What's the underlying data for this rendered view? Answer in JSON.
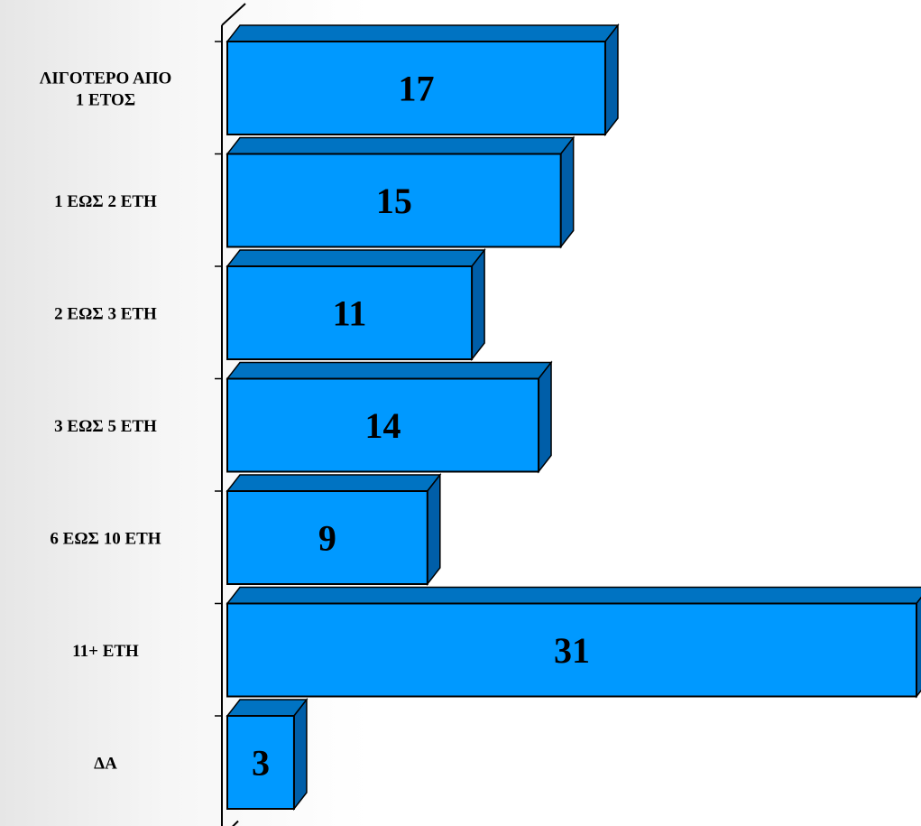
{
  "chart_data": {
    "type": "bar",
    "orientation": "horizontal",
    "style": "3d",
    "categories": [
      "ΛΙΓΟΤΕΡΟ ΑΠΟ 1 ΕΤΟΣ",
      "1 ΕΩΣ 2 ΕΤΗ",
      "2 ΕΩΣ 3 ΕΤΗ",
      "3 ΕΩΣ 5 ΕΤΗ",
      "6 ΕΩΣ 10 ΕΤΗ",
      "11+ ΕΤΗ",
      "ΔΑ"
    ],
    "category_lines": [
      [
        "ΛΙΓΟΤΕΡΟ ΑΠΟ",
        "1 ΕΤΟΣ"
      ],
      [
        "1 ΕΩΣ 2 ΕΤΗ"
      ],
      [
        "2 ΕΩΣ 3 ΕΤΗ"
      ],
      [
        "3 ΕΩΣ 5 ΕΤΗ"
      ],
      [
        "6 ΕΩΣ 10 ΕΤΗ"
      ],
      [
        "11+ ΕΤΗ"
      ],
      [
        "ΔΑ"
      ]
    ],
    "values": [
      17,
      15,
      11,
      14,
      9,
      31,
      3
    ],
    "data_labels": [
      "17",
      "15",
      "11",
      "14",
      "9",
      "31",
      "3"
    ],
    "title": "",
    "xlabel": "",
    "ylabel": "",
    "xlim": [
      0,
      31
    ],
    "grid": false,
    "legend": "none",
    "colors": {
      "bar_front": "#0099ff",
      "bar_top": "#0073c2",
      "bar_side": "#005ea8",
      "outline": "#000000"
    }
  }
}
